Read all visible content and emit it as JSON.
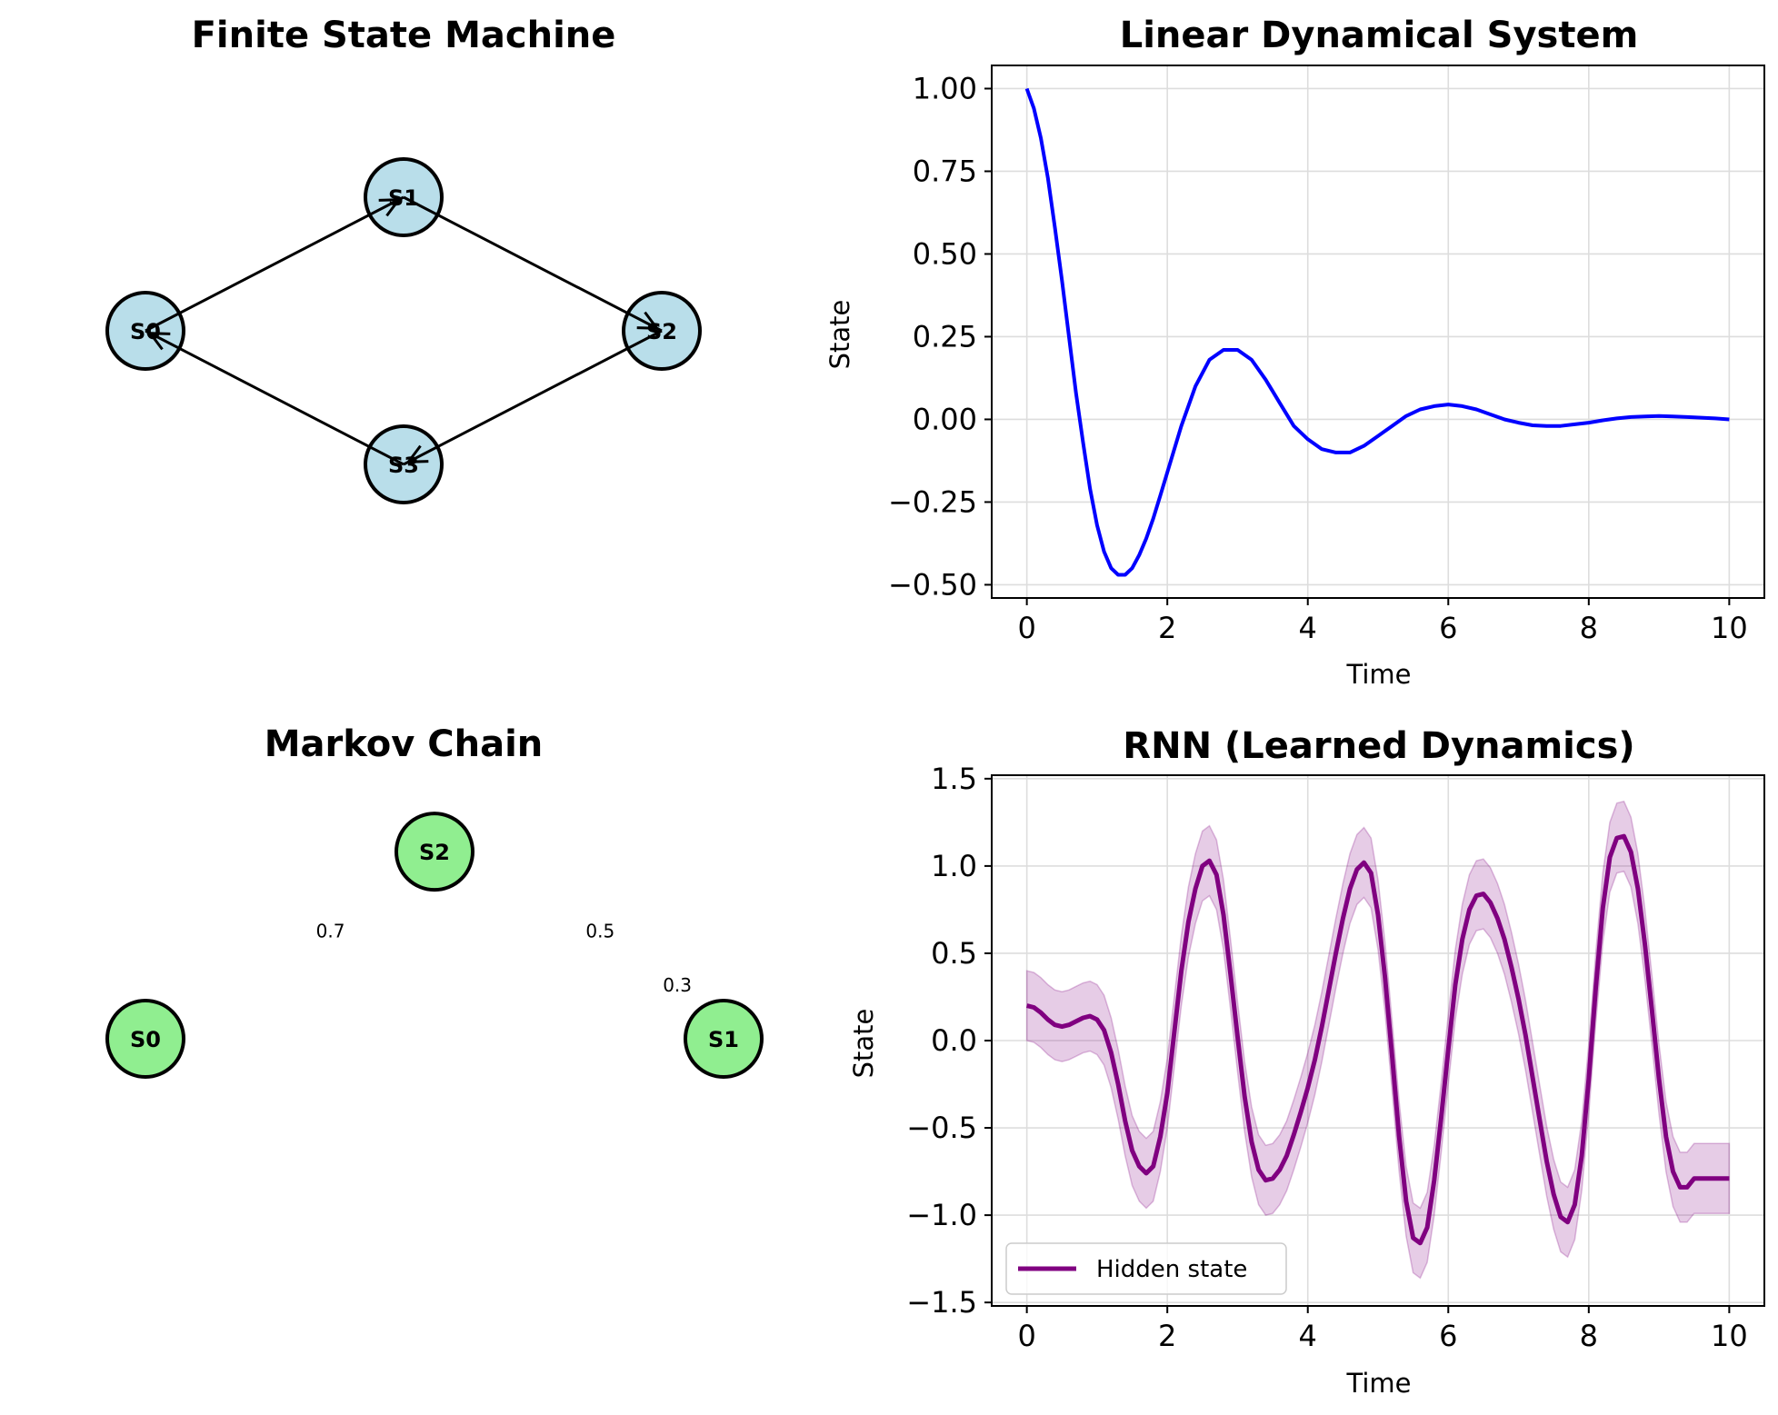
{
  "chart_data": [
    {
      "type": "diagram",
      "title": "Finite State Machine",
      "nodes": [
        {
          "id": "S0",
          "label": "S0",
          "pos": [
            -1,
            0
          ]
        },
        {
          "id": "S1",
          "label": "S1",
          "pos": [
            0,
            1
          ]
        },
        {
          "id": "S2",
          "label": "S2",
          "pos": [
            1,
            0
          ]
        },
        {
          "id": "S3",
          "label": "S3",
          "pos": [
            0,
            -1
          ]
        }
      ],
      "edges": [
        {
          "from": "S0",
          "to": "S1"
        },
        {
          "from": "S1",
          "to": "S2"
        },
        {
          "from": "S2",
          "to": "S3"
        },
        {
          "from": "S3",
          "to": "S0"
        }
      ],
      "node_color": "#add8e6"
    },
    {
      "type": "line",
      "title": "Linear Dynamical System",
      "xlabel": "Time",
      "ylabel": "State",
      "xlim": [
        -0.5,
        10.5
      ],
      "ylim": [
        -0.54,
        1.07
      ],
      "xticks": [
        0,
        2,
        4,
        6,
        8,
        10
      ],
      "yticks": [
        -0.5,
        -0.25,
        0.0,
        0.25,
        0.5,
        0.75,
        1.0
      ],
      "ytick_labels": [
        "−0.50",
        "−0.25",
        "0.00",
        "0.25",
        "0.50",
        "0.75",
        "1.00"
      ],
      "grid": true,
      "series": [
        {
          "color": "#0000ff",
          "x": [
            0,
            0.1,
            0.2,
            0.3,
            0.4,
            0.5,
            0.6,
            0.7,
            0.8,
            0.9,
            1.0,
            1.1,
            1.2,
            1.3,
            1.4,
            1.5,
            1.6,
            1.7,
            1.8,
            1.9,
            2.0,
            2.2,
            2.4,
            2.6,
            2.8,
            3.0,
            3.2,
            3.4,
            3.6,
            3.8,
            4.0,
            4.2,
            4.4,
            4.6,
            4.8,
            5.0,
            5.2,
            5.4,
            5.6,
            5.8,
            6.0,
            6.2,
            6.4,
            6.6,
            6.8,
            7.0,
            7.2,
            7.4,
            7.6,
            7.8,
            8.0,
            8.2,
            8.4,
            8.6,
            8.8,
            9.0,
            9.2,
            9.4,
            9.6,
            9.8,
            10.0
          ],
          "y": [
            1.0,
            0.94,
            0.85,
            0.73,
            0.58,
            0.42,
            0.25,
            0.08,
            -0.07,
            -0.21,
            -0.32,
            -0.4,
            -0.45,
            -0.47,
            -0.47,
            -0.45,
            -0.41,
            -0.36,
            -0.3,
            -0.23,
            -0.16,
            -0.02,
            0.1,
            0.18,
            0.21,
            0.21,
            0.18,
            0.12,
            0.05,
            -0.02,
            -0.06,
            -0.09,
            -0.1,
            -0.1,
            -0.08,
            -0.05,
            -0.02,
            0.01,
            0.03,
            0.04,
            0.045,
            0.04,
            0.03,
            0.015,
            0.0,
            -0.01,
            -0.018,
            -0.02,
            -0.02,
            -0.015,
            -0.01,
            -0.003,
            0.003,
            0.007,
            0.009,
            0.01,
            0.009,
            0.007,
            0.005,
            0.003,
            0.0
          ]
        }
      ]
    },
    {
      "type": "diagram",
      "title": "Markov Chain",
      "nodes": [
        {
          "id": "S0",
          "label": "S0",
          "pos": [
            0.0,
            0.0
          ]
        },
        {
          "id": "S1",
          "label": "S1",
          "pos": [
            1.5,
            0.0
          ]
        },
        {
          "id": "S2",
          "label": "S2",
          "pos": [
            0.75,
            0.73
          ]
        }
      ],
      "edge_labels": [
        {
          "text": "0.7",
          "pos": [
            0.48,
            0.395
          ]
        },
        {
          "text": "0.5",
          "pos": [
            1.18,
            0.395
          ]
        },
        {
          "text": "0.3",
          "pos": [
            1.38,
            0.185
          ]
        }
      ],
      "node_color": "#90ee90"
    },
    {
      "type": "line",
      "title": "RNN (Learned Dynamics)",
      "xlabel": "Time",
      "ylabel": "State",
      "xlim": [
        -0.5,
        10.5
      ],
      "ylim": [
        -1.52,
        1.52
      ],
      "xticks": [
        0,
        2,
        4,
        6,
        8,
        10
      ],
      "yticks": [
        -1.5,
        -1.0,
        -0.5,
        0.0,
        0.5,
        1.0,
        1.5
      ],
      "ytick_labels": [
        "−1.5",
        "−1.0",
        "−0.5",
        "0.0",
        "0.5",
        "1.0",
        "1.5"
      ],
      "grid": true,
      "legend": {
        "placement": "lower-left",
        "entries": [
          "Hidden state"
        ]
      },
      "band_halfwidth": 0.2,
      "band_color": "#800080",
      "series": [
        {
          "name": "Hidden state",
          "color": "#800080",
          "x": [
            0.0,
            0.1,
            0.2,
            0.3,
            0.4,
            0.5,
            0.6,
            0.7,
            0.8,
            0.9,
            1.0,
            1.1,
            1.2,
            1.3,
            1.4,
            1.5,
            1.6,
            1.7,
            1.8,
            1.9,
            2.0,
            2.1,
            2.2,
            2.3,
            2.4,
            2.5,
            2.6,
            2.7,
            2.8,
            2.9,
            3.0,
            3.1,
            3.2,
            3.3,
            3.4,
            3.5,
            3.6,
            3.7,
            3.8,
            3.9,
            4.0,
            4.1,
            4.2,
            4.3,
            4.4,
            4.5,
            4.6,
            4.7,
            4.8,
            4.9,
            5.0,
            5.1,
            5.2,
            5.3,
            5.4,
            5.5,
            5.6,
            5.7,
            5.8,
            5.9,
            6.0,
            6.1,
            6.2,
            6.3,
            6.4,
            6.5,
            6.6,
            6.7,
            6.8,
            6.9,
            7.0,
            7.1,
            7.2,
            7.3,
            7.4,
            7.5,
            7.6,
            7.7,
            7.8,
            7.9,
            8.0,
            8.1,
            8.2,
            8.3,
            8.4,
            8.5,
            8.6,
            8.7,
            8.8,
            8.9,
            9.0,
            9.1,
            9.2,
            9.3,
            9.4,
            9.5,
            9.6,
            9.7,
            9.8,
            9.9,
            10.0
          ],
          "y": [
            0.2,
            0.19,
            0.16,
            0.12,
            0.09,
            0.08,
            0.09,
            0.11,
            0.13,
            0.14,
            0.12,
            0.06,
            -0.07,
            -0.25,
            -0.46,
            -0.63,
            -0.72,
            -0.76,
            -0.72,
            -0.55,
            -0.3,
            0.05,
            0.4,
            0.68,
            0.87,
            1.0,
            1.03,
            0.95,
            0.72,
            0.38,
            0.02,
            -0.32,
            -0.58,
            -0.74,
            -0.8,
            -0.79,
            -0.74,
            -0.66,
            -0.54,
            -0.41,
            -0.27,
            -0.11,
            0.08,
            0.29,
            0.5,
            0.7,
            0.87,
            0.98,
            1.02,
            0.96,
            0.72,
            0.36,
            -0.09,
            -0.55,
            -0.92,
            -1.13,
            -1.16,
            -1.07,
            -0.8,
            -0.44,
            -0.05,
            0.32,
            0.58,
            0.75,
            0.83,
            0.84,
            0.79,
            0.7,
            0.58,
            0.42,
            0.24,
            0.03,
            -0.21,
            -0.45,
            -0.69,
            -0.88,
            -1.01,
            -1.04,
            -0.94,
            -0.66,
            -0.22,
            0.3,
            0.76,
            1.05,
            1.16,
            1.17,
            1.08,
            0.87,
            0.55,
            0.17,
            -0.22,
            -0.55,
            -0.75,
            -0.84,
            -0.84,
            -0.79,
            -0.79,
            -0.79,
            -0.79,
            -0.79,
            -0.79
          ]
        }
      ]
    }
  ]
}
